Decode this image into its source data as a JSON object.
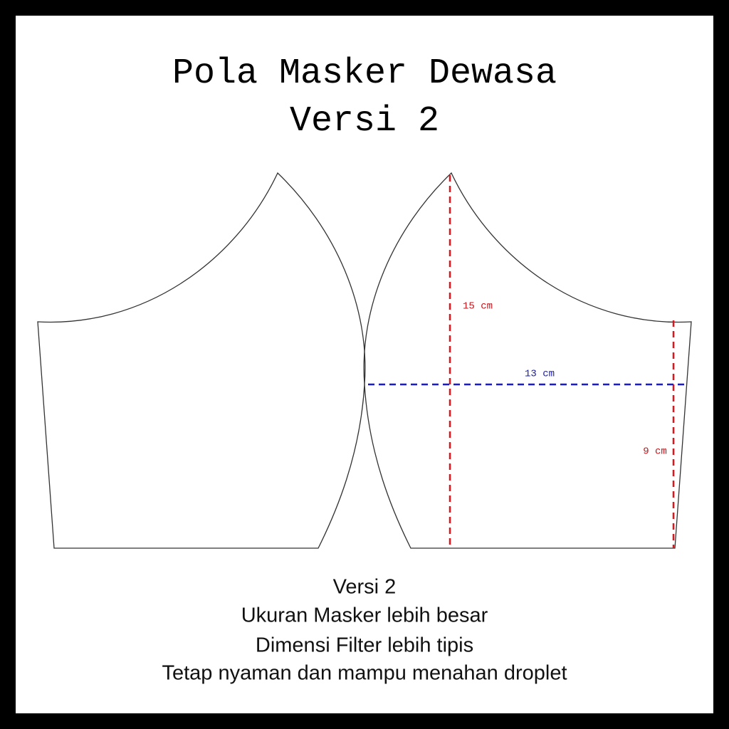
{
  "title": [
    "Pola Masker Dewasa",
    "Versi 2"
  ],
  "measurements": {
    "height": "15 cm",
    "width": "13 cm",
    "side": "9 cm"
  },
  "description": [
    "Versi 2",
    "Ukuran Masker lebih besar",
    "Dimensi Filter lebih tipis",
    "Tetap nyaman dan mampu menahan droplet"
  ]
}
